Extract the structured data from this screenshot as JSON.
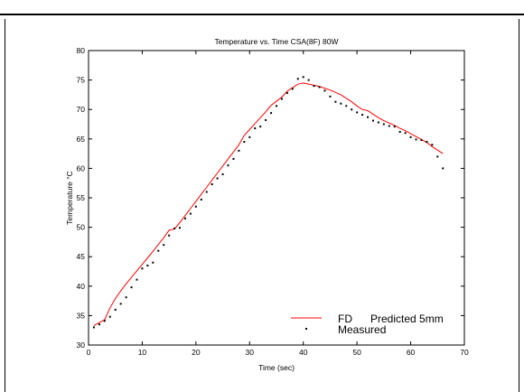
{
  "chart_data": {
    "type": "line",
    "title": "Temperature vs. Time CSA(8F) 80W",
    "xlabel": "Time (sec)",
    "ylabel": "Temperature °C",
    "xlim": [
      0,
      70
    ],
    "ylim": [
      30,
      80
    ],
    "x_ticks": [
      0,
      10,
      20,
      30,
      40,
      50,
      60,
      70
    ],
    "y_ticks": [
      30,
      35,
      40,
      45,
      50,
      55,
      60,
      65,
      70,
      75,
      80
    ],
    "grid": false,
    "legend_position": "bottom-right",
    "series": [
      {
        "name": "FD      Predicted 5mm",
        "style": "line",
        "color": "#ff0000",
        "x": [
          1,
          2,
          3,
          4,
          5,
          6,
          7,
          8,
          9,
          10,
          11,
          12,
          13,
          14,
          15,
          16,
          17,
          18,
          19,
          20,
          21,
          22,
          23,
          24,
          25,
          26,
          27,
          28,
          29,
          30,
          31,
          32,
          33,
          34,
          35,
          36,
          37,
          38,
          39,
          40,
          41,
          42,
          43,
          44,
          45,
          46,
          47,
          48,
          49,
          50,
          51,
          52,
          53,
          54,
          55,
          56,
          57,
          58,
          59,
          60,
          61,
          62,
          63,
          64,
          65,
          66
        ],
        "y": [
          33.3,
          33.8,
          34.3,
          36.3,
          37.9,
          39.2,
          40.4,
          41.5,
          42.6,
          43.7,
          44.8,
          45.9,
          47.1,
          48.2,
          49.5,
          49.7,
          50.8,
          52.0,
          53.2,
          54.4,
          55.6,
          56.8,
          58.0,
          59.2,
          60.4,
          61.6,
          62.8,
          64.0,
          65.6,
          66.6,
          67.6,
          68.6,
          69.6,
          70.7,
          71.4,
          72.1,
          73.1,
          73.7,
          74.3,
          74.5,
          74.3,
          74.1,
          73.9,
          73.6,
          73.3,
          72.9,
          72.5,
          71.9,
          71.3,
          70.6,
          70.0,
          69.8,
          69.2,
          68.6,
          68.1,
          67.7,
          67.3,
          66.8,
          66.4,
          65.9,
          65.4,
          64.9,
          64.4,
          63.7,
          63.1,
          62.5
        ]
      },
      {
        "name": "Measured",
        "style": "points",
        "color": "#000000",
        "x": [
          1,
          2,
          3,
          4,
          5,
          6,
          7,
          8,
          9,
          10,
          11,
          12,
          13,
          14,
          15,
          16,
          17,
          18,
          19,
          20,
          21,
          22,
          23,
          24,
          25,
          26,
          27,
          28,
          29,
          30,
          31,
          32,
          33,
          34,
          35,
          36,
          37,
          38,
          39,
          40,
          41,
          42,
          43,
          44,
          45,
          46,
          47,
          48,
          49,
          50,
          51,
          52,
          53,
          54,
          55,
          56,
          57,
          58,
          59,
          60,
          61,
          62,
          63,
          64,
          65,
          66
        ],
        "y": [
          33.0,
          33.5,
          34.1,
          34.8,
          36.0,
          37.0,
          38.1,
          39.8,
          41.1,
          43.0,
          43.5,
          44.0,
          46.0,
          47.0,
          48.6,
          49.8,
          49.9,
          51.5,
          52.3,
          53.5,
          54.7,
          56.0,
          57.3,
          58.3,
          59.0,
          60.5,
          61.6,
          63.0,
          64.5,
          65.3,
          66.8,
          67.1,
          68.2,
          69.4,
          70.6,
          71.8,
          72.8,
          73.5,
          75.2,
          75.5,
          75.0,
          74.0,
          73.8,
          73.2,
          72.2,
          71.3,
          71.0,
          70.6,
          70.0,
          69.5,
          69.1,
          68.7,
          68.1,
          67.8,
          67.5,
          67.2,
          67.1,
          66.2,
          66.0,
          65.3,
          64.9,
          64.8,
          64.5,
          64.0,
          62.0,
          60.0
        ]
      }
    ]
  }
}
